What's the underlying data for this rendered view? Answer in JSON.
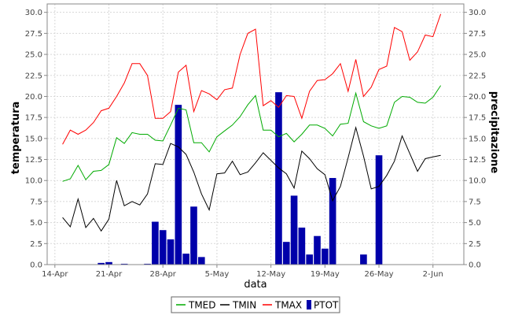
{
  "chart_data": {
    "type": "line",
    "xlabel": "data",
    "ylabel_left": "temperatura",
    "ylabel_right": "precipitazione",
    "ylim": [
      0,
      31
    ],
    "yticks": [
      0.0,
      2.5,
      5.0,
      7.5,
      10.0,
      12.5,
      15.0,
      17.5,
      20.0,
      22.5,
      25.0,
      27.5,
      30.0
    ],
    "yticks_labels": [
      "0.0",
      "2.5",
      "5.0",
      "7.5",
      "10.0",
      "12.5",
      "15.0",
      "17.5",
      "20.0",
      "22.5",
      "25.0",
      "27.5",
      "30.0"
    ],
    "xlim": [
      "2012-04-13",
      "2012-06-06"
    ],
    "xticks": [
      "2012-04-14",
      "2012-04-21",
      "2012-04-28",
      "2012-05-05",
      "2012-05-12",
      "2012-05-19",
      "2012-05-26",
      "2012-06-02"
    ],
    "xtick_labels": [
      "14-Apr",
      "21-Apr",
      "28-Apr",
      "5-May",
      "12-May",
      "19-May",
      "26-May",
      "2-Jun"
    ],
    "grid": true,
    "legend_position": "bottom",
    "dates": [
      "2012-04-15",
      "2012-04-16",
      "2012-04-17",
      "2012-04-18",
      "2012-04-19",
      "2012-04-20",
      "2012-04-21",
      "2012-04-22",
      "2012-04-23",
      "2012-04-24",
      "2012-04-25",
      "2012-04-26",
      "2012-04-27",
      "2012-04-28",
      "2012-04-29",
      "2012-04-30",
      "2012-05-01",
      "2012-05-02",
      "2012-05-03",
      "2012-05-04",
      "2012-05-05",
      "2012-05-06",
      "2012-05-07",
      "2012-05-08",
      "2012-05-09",
      "2012-05-10",
      "2012-05-11",
      "2012-05-12",
      "2012-05-13",
      "2012-05-14",
      "2012-05-15",
      "2012-05-16",
      "2012-05-17",
      "2012-05-18",
      "2012-05-19",
      "2012-05-20",
      "2012-05-21",
      "2012-05-22",
      "2012-05-23",
      "2012-05-24",
      "2012-05-25",
      "2012-05-26",
      "2012-05-27",
      "2012-05-28",
      "2012-05-29",
      "2012-05-30",
      "2012-05-31",
      "2012-06-01",
      "2012-06-02",
      "2012-06-03"
    ],
    "series": [
      {
        "name": "TMED",
        "color": "#00aa00",
        "values": [
          9.9,
          10.2,
          11.8,
          10.1,
          11.1,
          11.2,
          11.9,
          15.1,
          14.4,
          15.7,
          15.5,
          15.5,
          14.8,
          14.7,
          16.6,
          18.6,
          18.4,
          14.5,
          14.5,
          13.4,
          15.2,
          15.9,
          16.6,
          17.6,
          19.0,
          20.1,
          16.0,
          16.0,
          15.2,
          15.6,
          14.6,
          15.5,
          16.6,
          16.6,
          16.2,
          15.3,
          16.7,
          16.8,
          20.4,
          17.0,
          16.5,
          16.2,
          16.5,
          19.3,
          20.0,
          19.9,
          19.3,
          19.2,
          19.9,
          21.3
        ]
      },
      {
        "name": "TMIN",
        "color": "#000000",
        "values": [
          5.6,
          4.5,
          7.8,
          4.4,
          5.5,
          4.0,
          5.4,
          10.0,
          7.0,
          7.5,
          7.1,
          8.4,
          12.0,
          11.9,
          14.4,
          14.0,
          13.1,
          11.0,
          8.4,
          6.5,
          10.8,
          10.9,
          12.3,
          10.7,
          11.0,
          12.1,
          13.3,
          12.4,
          11.5,
          10.8,
          9.1,
          13.5,
          12.6,
          11.4,
          10.7,
          7.6,
          9.3,
          12.7,
          16.3,
          12.9,
          9.0,
          9.3,
          10.6,
          12.3,
          15.3,
          13.2,
          11.1,
          12.6,
          12.8,
          13.0
        ]
      },
      {
        "name": "TMAX",
        "color": "#ff0000",
        "values": [
          14.3,
          16.0,
          15.5,
          16.0,
          16.9,
          18.3,
          18.6,
          20.0,
          21.6,
          23.9,
          23.9,
          22.5,
          17.4,
          17.4,
          18.2,
          22.9,
          23.7,
          18.2,
          20.7,
          20.3,
          19.6,
          20.8,
          21.0,
          25.0,
          27.5,
          28.0,
          18.9,
          19.5,
          18.7,
          20.1,
          20.0,
          17.4,
          20.6,
          21.9,
          22.0,
          22.7,
          23.9,
          20.6,
          24.4,
          20.0,
          21.1,
          23.2,
          23.6,
          28.2,
          27.7,
          24.3,
          25.3,
          27.3,
          27.1,
          29.8
        ]
      }
    ],
    "bars": {
      "name": "PTOT",
      "color": "#0000aa",
      "dates": [
        "2012-04-20",
        "2012-04-21",
        "2012-04-23",
        "2012-04-26",
        "2012-04-27",
        "2012-04-28",
        "2012-04-29",
        "2012-04-30",
        "2012-05-01",
        "2012-05-02",
        "2012-05-03",
        "2012-05-13",
        "2012-05-14",
        "2012-05-15",
        "2012-05-16",
        "2012-05-17",
        "2012-05-18",
        "2012-05-19",
        "2012-05-20",
        "2012-05-22",
        "2012-05-24",
        "2012-05-26"
      ],
      "values": [
        0.2,
        0.3,
        0.1,
        0.1,
        5.1,
        4.1,
        3.0,
        19.0,
        1.3,
        6.9,
        0.9,
        20.5,
        2.7,
        8.2,
        4.4,
        1.2,
        3.4,
        1.9,
        10.3,
        0.0,
        1.2,
        13.0
      ]
    },
    "legend": [
      "TMED",
      "TMIN",
      "TMAX",
      "PTOT"
    ]
  }
}
